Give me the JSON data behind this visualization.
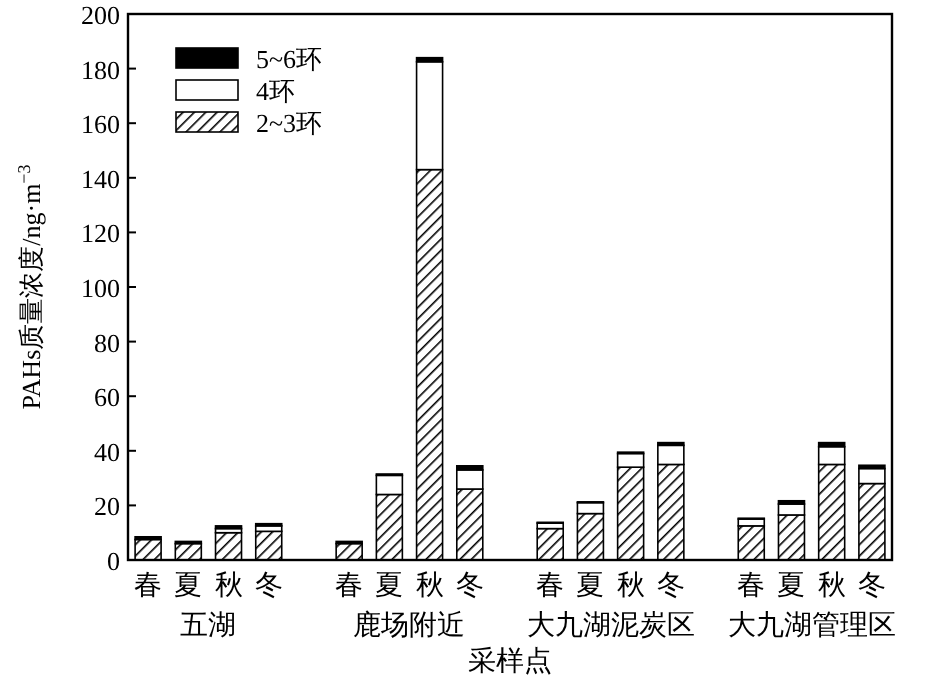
{
  "chart_data": {
    "type": "bar",
    "stacked": true,
    "xlabel": "采样点",
    "ylabel": "PAHs质量浓度/ng·m$^{−3}$",
    "categories": [
      "春",
      "夏",
      "秋",
      "冬",
      null,
      "春",
      "夏",
      "秋",
      "冬",
      null,
      "春",
      "夏",
      "秋",
      "冬",
      null,
      "春",
      "夏",
      "秋",
      "冬"
    ],
    "annotations": [
      "五湖",
      "鹿场附近",
      "大九湖泥炭区",
      "大九湖管理区"
    ],
    "ylim": [
      0,
      200
    ],
    "yticks": [
      0,
      20,
      40,
      60,
      80,
      100,
      120,
      140,
      160,
      180,
      200
    ],
    "grid": false,
    "legend": "top left",
    "series": [
      {
        "name": "2~3环",
        "color": "#000000",
        "values": [
          7.5,
          6,
          10,
          10.5,
          null,
          6,
          24,
          143,
          26,
          null,
          11.5,
          17,
          34,
          35,
          null,
          12.5,
          16.5,
          35,
          28
        ]
      },
      {
        "name": "4环",
        "color": "#ffffff",
        "values": [
          null,
          null,
          1.5,
          2,
          null,
          null,
          7,
          39.5,
          7,
          null,
          2,
          4,
          5,
          7,
          null,
          2.5,
          4,
          6.5,
          5.5
        ]
      },
      {
        "name": "5~6环",
        "color": "#000000",
        "values": [
          1,
          0.8,
          1,
          0.8,
          null,
          0.8,
          0.5,
          1.5,
          1.5,
          null,
          0.3,
          0.3,
          0.5,
          1,
          null,
          0.3,
          1.2,
          1.5,
          1.2
        ]
      }
    ]
  }
}
